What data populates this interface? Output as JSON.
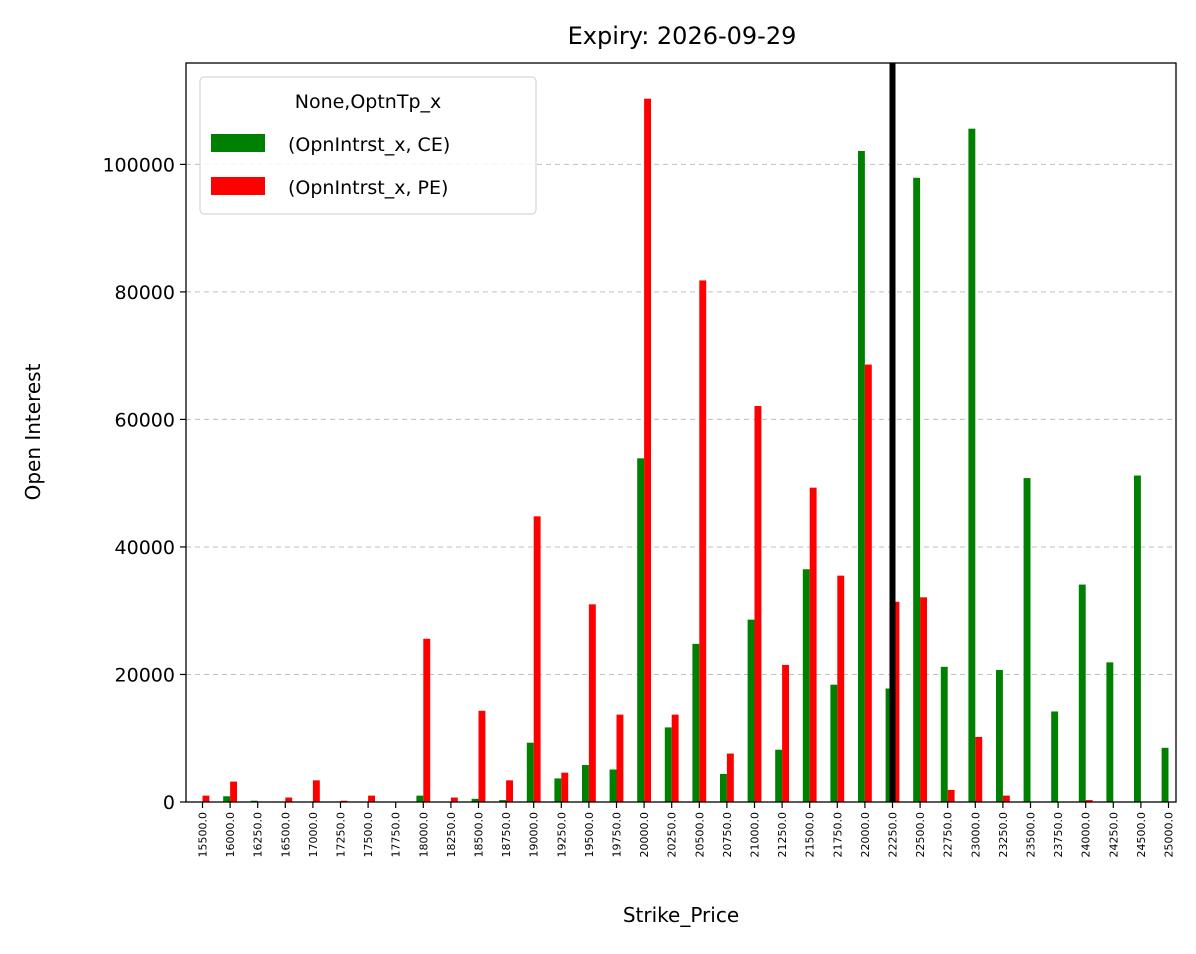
{
  "chart_data": {
    "type": "bar",
    "title": "Expiry: 2026-09-29",
    "xlabel": "Strike_Price",
    "ylabel": "Open Interest",
    "ylim": [
      0,
      115900
    ],
    "yticks": [
      "0",
      "20000",
      "40000",
      "60000",
      "80000",
      "100000"
    ],
    "ytick_values": [
      0,
      20000,
      40000,
      60000,
      80000,
      100000
    ],
    "grid": "y dashed",
    "categories": [
      "15500.0",
      "16000.0",
      "16250.0",
      "16500.0",
      "17000.0",
      "17250.0",
      "17500.0",
      "17750.0",
      "18000.0",
      "18250.0",
      "18500.0",
      "18750.0",
      "19000.0",
      "19250.0",
      "19500.0",
      "19750.0",
      "20000.0",
      "20250.0",
      "20500.0",
      "20750.0",
      "21000.0",
      "21250.0",
      "21500.0",
      "21750.0",
      "22000.0",
      "22250.0",
      "22500.0",
      "22750.0",
      "23000.0",
      "23250.0",
      "23500.0",
      "23750.0",
      "24000.0",
      "24250.0",
      "24500.0",
      "25000.0"
    ],
    "series": [
      {
        "name": "(OpnIntrst_x, CE)",
        "color": "#008000",
        "values": [
          0,
          900,
          200,
          0,
          0,
          0,
          0,
          0,
          1000,
          0,
          500,
          300,
          9300,
          3700,
          5800,
          5100,
          53900,
          11700,
          24800,
          4400,
          28600,
          8200,
          36500,
          18400,
          102100,
          17800,
          97900,
          21200,
          105600,
          20700,
          50800,
          14200,
          34100,
          21900,
          51200,
          8500
        ]
      },
      {
        "name": "(OpnIntrst_x, PE)",
        "color": "#ff0000",
        "values": [
          1000,
          3200,
          0,
          700,
          3400,
          200,
          1000,
          0,
          25600,
          700,
          14300,
          3400,
          44800,
          4600,
          31000,
          13700,
          110300,
          13700,
          81800,
          7600,
          62100,
          21500,
          49300,
          35500,
          68600,
          31400,
          32100,
          1900,
          10200,
          1000,
          0,
          0,
          300,
          0,
          0,
          0
        ]
      }
    ],
    "legend": {
      "title": "None,OptnTp_x",
      "position": "top-left"
    },
    "reference_line": {
      "category": "22250.0",
      "color": "#000000"
    }
  }
}
